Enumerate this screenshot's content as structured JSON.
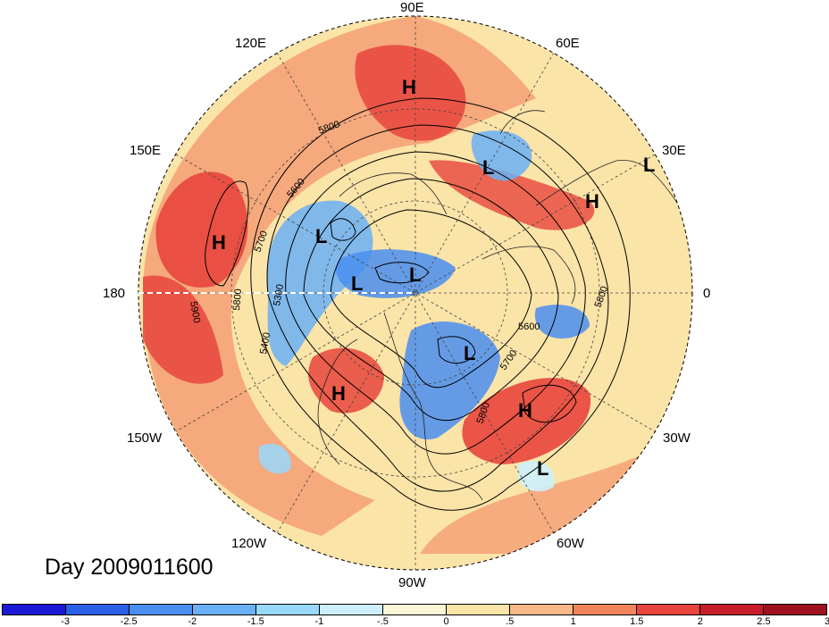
{
  "title": "Day 2009011600",
  "longitude_labels": {
    "deg90e": "90E",
    "deg60e": "60E",
    "deg30e": "30E",
    "deg0": "0",
    "deg30w": "30W",
    "deg60w": "60W",
    "deg90w": "90W",
    "deg120w": "120W",
    "deg150w": "150W",
    "deg180": "180",
    "deg150e": "150E",
    "deg120e": "120E"
  },
  "pressure_centers": [
    {
      "label": "H",
      "lon": "120E region"
    },
    {
      "label": "L",
      "lon": "north Russia"
    },
    {
      "label": "L",
      "lon": "Scandinavia"
    },
    {
      "label": "H",
      "lon": "Europe"
    },
    {
      "label": "H",
      "lon": "North Pacific"
    },
    {
      "label": "L",
      "lon": "east Siberia"
    },
    {
      "label": "L",
      "lon": "Arctic"
    },
    {
      "label": "L",
      "lon": "Arctic"
    },
    {
      "label": "L",
      "lon": "Hudson Bay"
    },
    {
      "label": "H",
      "lon": "Gulf of Alaska"
    },
    {
      "label": "H",
      "lon": "Atlantic"
    },
    {
      "label": "L",
      "lon": "subtropical Atlantic"
    }
  ],
  "contour_labels": [
    "5800",
    "5600",
    "5700",
    "5300",
    "5400",
    "5800",
    "5900",
    "5600",
    "5700",
    "5800",
    "5800"
  ],
  "colorbar": {
    "colors": [
      "#1a1ad6",
      "#2a5fe8",
      "#4a8ef0",
      "#6ab0f6",
      "#98d8fa",
      "#cdeffc",
      "#fdf6d6",
      "#fbe4a8",
      "#f8b888",
      "#f2845c",
      "#e8453c",
      "#c81e2c",
      "#a0101e"
    ],
    "ticks": [
      "-3",
      "-2.5",
      "-2",
      "-1.5",
      "-1",
      "-.5",
      "0",
      ".5",
      "1",
      "1.5",
      "2",
      "2.5",
      "3"
    ]
  }
}
